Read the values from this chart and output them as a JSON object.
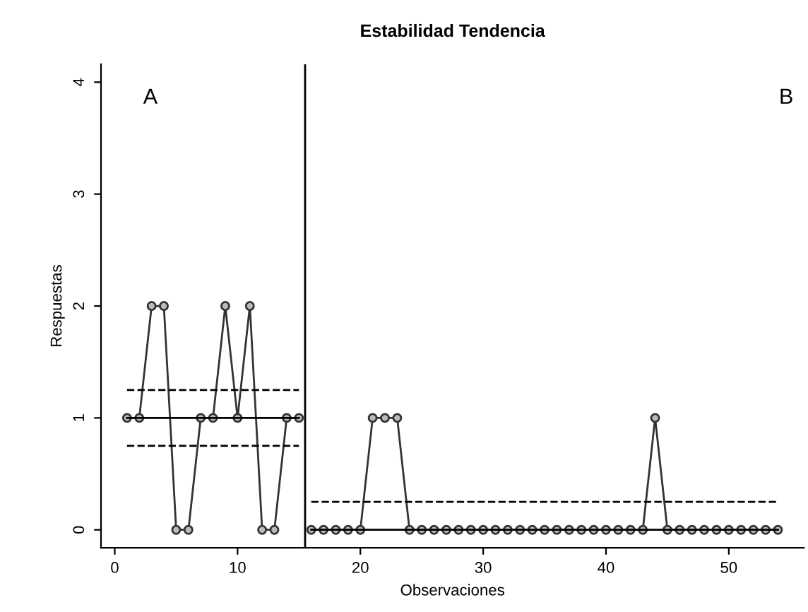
{
  "chart_data": {
    "type": "line",
    "title": "Estabilidad Tendencia",
    "xlabel": "Observaciones",
    "ylabel": "Respuestas",
    "annotations": [
      "A",
      "B"
    ],
    "series": [
      {
        "x": [
          1,
          2,
          3,
          4,
          5,
          6,
          7,
          8,
          9,
          10,
          11,
          12,
          13,
          14,
          15
        ],
        "values": [
          1,
          1,
          2,
          2,
          0,
          0,
          1,
          1,
          2,
          1,
          2,
          0,
          0,
          1,
          1
        ],
        "color": "#333333",
        "marker": "circle",
        "line_style": "solid"
      },
      {
        "x": [
          16,
          17,
          18,
          19,
          20,
          21,
          22,
          23,
          24,
          25,
          26,
          27,
          28,
          29,
          30,
          31,
          32,
          33,
          34,
          35,
          36,
          37,
          38,
          39,
          40,
          41,
          42,
          43,
          44,
          45,
          46,
          47,
          48,
          49,
          50,
          51,
          52,
          53,
          54
        ],
        "values": [
          0,
          0,
          0,
          0,
          0,
          1,
          1,
          1,
          0,
          0,
          0,
          0,
          0,
          0,
          0,
          0,
          0,
          0,
          0,
          0,
          0,
          0,
          0,
          0,
          0,
          0,
          0,
          0,
          1,
          0,
          0,
          0,
          0,
          0,
          0,
          0,
          0,
          0,
          0
        ],
        "color": "#333333",
        "marker": "circle",
        "line_style": "solid"
      },
      {
        "x": [
          1,
          15
        ],
        "values": [
          1,
          1
        ],
        "color": "#000000",
        "marker": "none",
        "line_style": "solid"
      },
      {
        "x": [
          1,
          15
        ],
        "values": [
          1.25,
          1.25
        ],
        "color": "#000000",
        "marker": "none",
        "line_style": "dashed"
      },
      {
        "x": [
          1,
          15
        ],
        "values": [
          0.75,
          0.75
        ],
        "color": "#000000",
        "marker": "none",
        "line_style": "dashed"
      },
      {
        "x": [
          16,
          54
        ],
        "values": [
          0,
          0
        ],
        "color": "#000000",
        "marker": "none",
        "line_style": "solid"
      },
      {
        "x": [
          16,
          54
        ],
        "values": [
          0.25,
          0.25
        ],
        "color": "#000000",
        "marker": "none",
        "line_style": "dashed"
      }
    ],
    "ref_lines": [
      {
        "axis": "x",
        "value": 15.5,
        "color": "#000000",
        "line_style": "solid"
      }
    ],
    "xlim": [
      -1.12,
      56.12
    ],
    "ylim": [
      -0.16,
      4.16
    ],
    "xticks": [
      0,
      10,
      20,
      30,
      40,
      50
    ],
    "yticks": [
      0,
      1,
      2,
      3,
      4
    ],
    "grid": false,
    "legend": false
  }
}
